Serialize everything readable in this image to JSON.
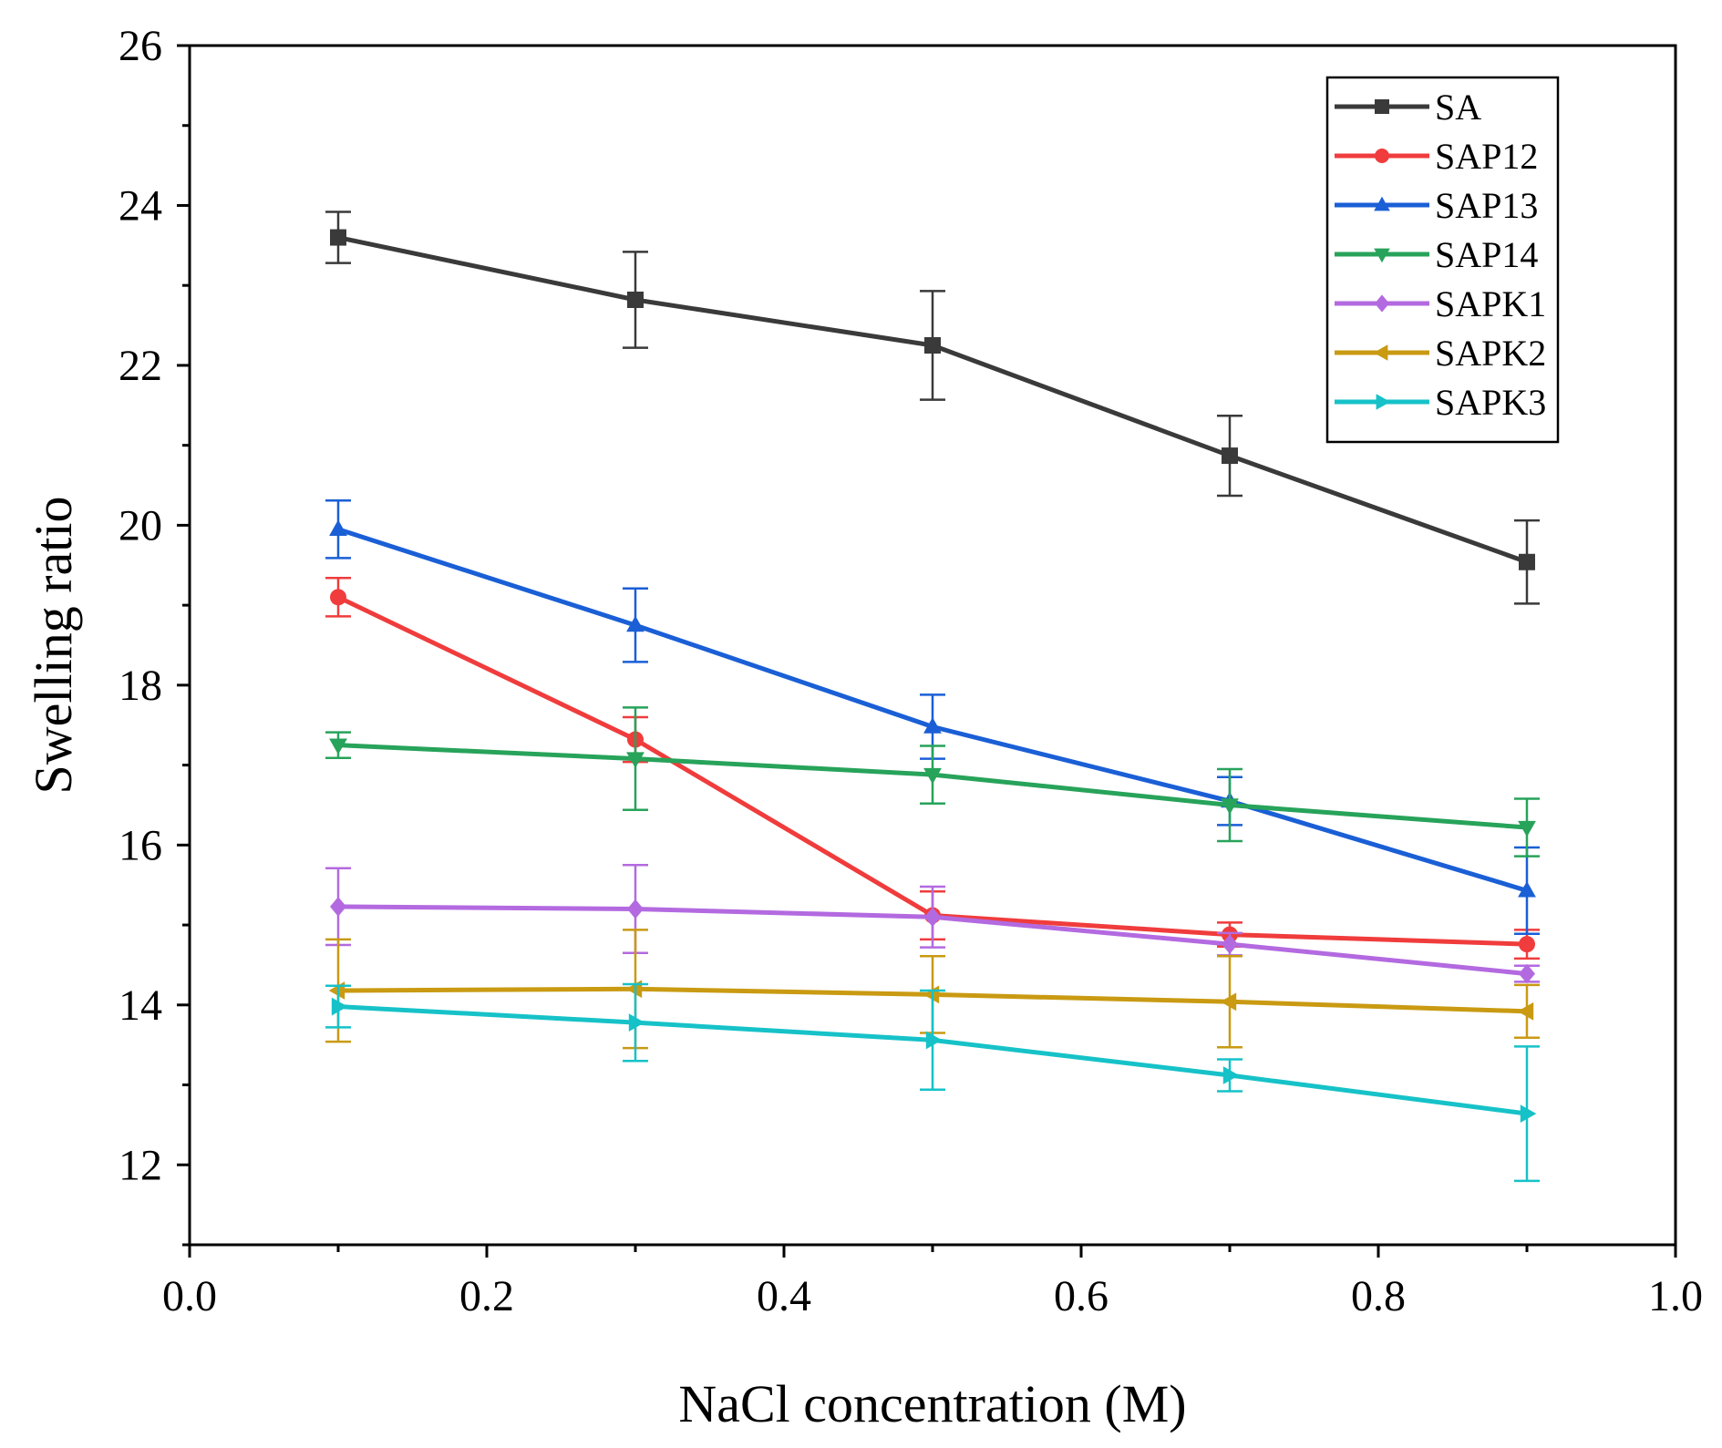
{
  "chart_data": {
    "type": "line",
    "title": "",
    "xlabel": "NaCl concentration (M)",
    "ylabel": "Swelling ratio",
    "xlim": [
      0.0,
      1.0
    ],
    "ylim": [
      11.0,
      26.0
    ],
    "xticks": [
      "0.0",
      "0.2",
      "0.4",
      "0.6",
      "0.8",
      "1.0"
    ],
    "yticks": [
      "12",
      "14",
      "16",
      "18",
      "20",
      "22",
      "24",
      "26"
    ],
    "grid": false,
    "legend_position": "top-right",
    "x": [
      0.1,
      0.3,
      0.5,
      0.7,
      0.9
    ],
    "series": [
      {
        "name": "SA",
        "color": "#3a3a3a",
        "marker": "square",
        "values": [
          23.6,
          22.82,
          22.25,
          20.87,
          19.54
        ],
        "errors": [
          0.32,
          0.6,
          0.68,
          0.5,
          0.52
        ]
      },
      {
        "name": "SAP12",
        "color": "#f03c3c",
        "marker": "circle",
        "values": [
          19.1,
          17.32,
          15.12,
          14.88,
          14.76
        ],
        "errors": [
          0.24,
          0.28,
          0.3,
          0.15,
          0.18
        ]
      },
      {
        "name": "SAP13",
        "color": "#1a5fd6",
        "marker": "triangle-up",
        "values": [
          19.95,
          18.75,
          17.48,
          16.55,
          15.43
        ],
        "errors": [
          0.36,
          0.46,
          0.4,
          0.3,
          0.54
        ]
      },
      {
        "name": "SAP14",
        "color": "#27a35a",
        "marker": "triangle-down",
        "values": [
          17.25,
          17.08,
          16.88,
          16.5,
          16.22
        ],
        "errors": [
          0.16,
          0.64,
          0.36,
          0.45,
          0.36
        ]
      },
      {
        "name": "SAPK1",
        "color": "#b36ae0",
        "marker": "diamond",
        "values": [
          15.23,
          15.2,
          15.1,
          14.76,
          14.39
        ],
        "errors": [
          0.48,
          0.55,
          0.38,
          0.14,
          0.1
        ]
      },
      {
        "name": "SAPK2",
        "color": "#c99a12",
        "marker": "triangle-left",
        "values": [
          14.18,
          14.2,
          14.13,
          14.04,
          13.92
        ],
        "errors": [
          0.64,
          0.74,
          0.48,
          0.57,
          0.33
        ]
      },
      {
        "name": "SAPK3",
        "color": "#16c2c8",
        "marker": "triangle-right",
        "values": [
          13.98,
          13.78,
          13.56,
          13.12,
          12.64
        ],
        "errors": [
          0.26,
          0.48,
          0.62,
          0.2,
          0.84
        ]
      }
    ]
  }
}
